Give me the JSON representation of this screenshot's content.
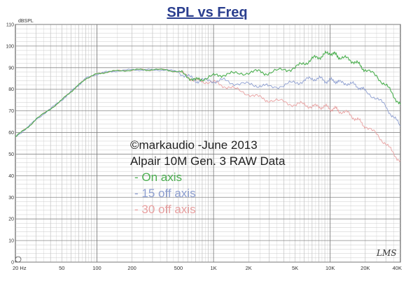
{
  "chart_data": {
    "type": "line",
    "title": "SPL vs Freq",
    "ylabel": "dBSPL",
    "xlabel": "",
    "x_scale": "log",
    "xlim": [
      20,
      40000
    ],
    "ylim": [
      0,
      110
    ],
    "y_ticks": [
      "0",
      "10",
      "20",
      "30",
      "40",
      "50",
      "60",
      "70",
      "80",
      "90",
      "100",
      "110"
    ],
    "x_tick_labels": [
      {
        "value": 20,
        "label": "20 Hz"
      },
      {
        "value": 50,
        "label": "50"
      },
      {
        "value": 100,
        "label": "100"
      },
      {
        "value": 200,
        "label": "200"
      },
      {
        "value": 500,
        "label": "500"
      },
      {
        "value": 1000,
        "label": "1K"
      },
      {
        "value": 2000,
        "label": "2K"
      },
      {
        "value": 5000,
        "label": "5K"
      },
      {
        "value": 10000,
        "label": "10K"
      },
      {
        "value": 20000,
        "label": "20K"
      },
      {
        "value": 40000,
        "label": "40K"
      }
    ],
    "grid": true,
    "legend_placement": "center",
    "series": [
      {
        "name": "On axis",
        "color": "#4caf50",
        "x": [
          20,
          25,
          30,
          40,
          50,
          60,
          70,
          80,
          100,
          120,
          150,
          200,
          250,
          300,
          400,
          500,
          600,
          700,
          800,
          1000,
          1200,
          1500,
          2000,
          2500,
          3000,
          4000,
          5000,
          6000,
          7000,
          8000,
          9000,
          10000,
          11000,
          12000,
          14000,
          16000,
          18000,
          20000,
          25000,
          30000,
          35000,
          40000
        ],
        "y": [
          58,
          62,
          66,
          71,
          75,
          79,
          82,
          85,
          87,
          88,
          88.5,
          89,
          89,
          89,
          89,
          88,
          86,
          84,
          85,
          86,
          87,
          87,
          88,
          88,
          87.5,
          89,
          90,
          92,
          94,
          95,
          96,
          97,
          96,
          95,
          94,
          93,
          91,
          89,
          86,
          82,
          77,
          73
        ]
      },
      {
        "name": "15 off axis",
        "color": "#8e9fd1",
        "x": [
          20,
          25,
          30,
          40,
          50,
          60,
          70,
          80,
          100,
          120,
          150,
          200,
          250,
          300,
          400,
          500,
          600,
          700,
          800,
          1000,
          1200,
          1500,
          2000,
          2500,
          3000,
          4000,
          5000,
          6000,
          7000,
          8000,
          9000,
          10000,
          11000,
          12000,
          14000,
          16000,
          18000,
          20000,
          25000,
          30000,
          35000,
          40000
        ],
        "y": [
          58,
          62,
          66,
          71,
          75,
          79,
          82,
          85,
          87,
          88,
          88.5,
          89,
          89,
          89,
          89,
          88,
          86,
          84,
          84,
          84,
          84,
          83,
          82,
          82,
          81,
          82,
          83,
          84,
          85,
          85,
          84,
          84,
          84,
          83,
          83,
          82,
          81,
          79,
          76,
          72,
          67,
          63
        ]
      },
      {
        "name": "30 off axis",
        "color": "#e8a0a0",
        "x": [
          20,
          25,
          30,
          40,
          50,
          60,
          70,
          80,
          100,
          120,
          150,
          200,
          250,
          300,
          400,
          500,
          600,
          700,
          800,
          1000,
          1200,
          1500,
          2000,
          2500,
          3000,
          4000,
          5000,
          6000,
          7000,
          8000,
          9000,
          10000,
          11000,
          12000,
          14000,
          16000,
          18000,
          20000,
          25000,
          30000,
          35000,
          40000
        ],
        "y": [
          58,
          62,
          66,
          71,
          75,
          79,
          82,
          85,
          87,
          88,
          88.5,
          89,
          89,
          89,
          89,
          88,
          86,
          84,
          84,
          83,
          82,
          80,
          78,
          76,
          75,
          74,
          73,
          73,
          72,
          72,
          72,
          71,
          71,
          70,
          69,
          67,
          65,
          63,
          59,
          55,
          50,
          47
        ]
      }
    ],
    "annotations": {
      "copyright": "©markaudio -June 2013",
      "description": "Alpair 10M Gen. 3 RAW Data",
      "legend_items": [
        "- On axis",
        "- 15 off axis",
        "- 30 off axis"
      ],
      "signature": "LMS"
    }
  },
  "colors": {
    "title": "#2b3f8f",
    "grid": "#9a9a9a",
    "text": "#222222",
    "on_axis": "#4caf50",
    "off15": "#8e9fd1",
    "off30": "#e8a0a0"
  }
}
